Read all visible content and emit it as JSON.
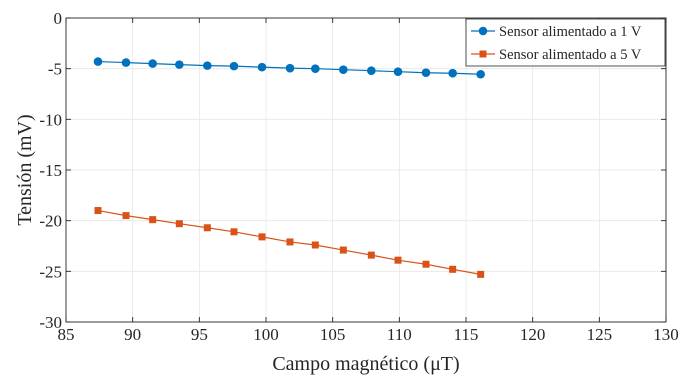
{
  "chart_data": {
    "type": "line",
    "xlabel": "Campo magnético (μT)",
    "ylabel": "Tensión (mV)",
    "xlim": [
      85,
      130
    ],
    "ylim": [
      -30,
      0
    ],
    "xticks": [
      85,
      90,
      95,
      100,
      105,
      110,
      115,
      120,
      125,
      130
    ],
    "yticks": [
      0,
      -5,
      -10,
      -15,
      -20,
      -25,
      -30
    ],
    "xtick_labels": [
      "85",
      "90",
      "95",
      "100",
      "105",
      "110",
      "115",
      "120",
      "125",
      "130"
    ],
    "ytick_labels": [
      "0",
      "-5",
      "-10",
      "-15",
      "-20",
      "-25",
      "-30"
    ],
    "grid": true,
    "legend_position": "top-right",
    "series": [
      {
        "name": "Sensor alimentado a 1 V",
        "color": "#0072BD",
        "marker": "circle",
        "x": [
          87.4,
          89.5,
          91.5,
          93.5,
          95.6,
          97.6,
          99.7,
          101.8,
          103.7,
          105.8,
          107.9,
          109.9,
          112.0,
          114.0,
          116.1
        ],
        "y": [
          -4.3,
          -4.4,
          -4.5,
          -4.6,
          -4.7,
          -4.75,
          -4.85,
          -4.95,
          -5.0,
          -5.1,
          -5.2,
          -5.3,
          -5.4,
          -5.45,
          -5.55
        ]
      },
      {
        "name": "Sensor alimentado a 5 V",
        "color": "#D95319",
        "marker": "square",
        "x": [
          87.4,
          89.5,
          91.5,
          93.5,
          95.6,
          97.6,
          99.7,
          101.8,
          103.7,
          105.8,
          107.9,
          109.9,
          112.0,
          114.0,
          116.1
        ],
        "y": [
          -19.0,
          -19.5,
          -19.9,
          -20.3,
          -20.7,
          -21.1,
          -21.6,
          -22.1,
          -22.4,
          -22.9,
          -23.4,
          -23.9,
          -24.3,
          -24.8,
          -25.3
        ]
      }
    ]
  }
}
